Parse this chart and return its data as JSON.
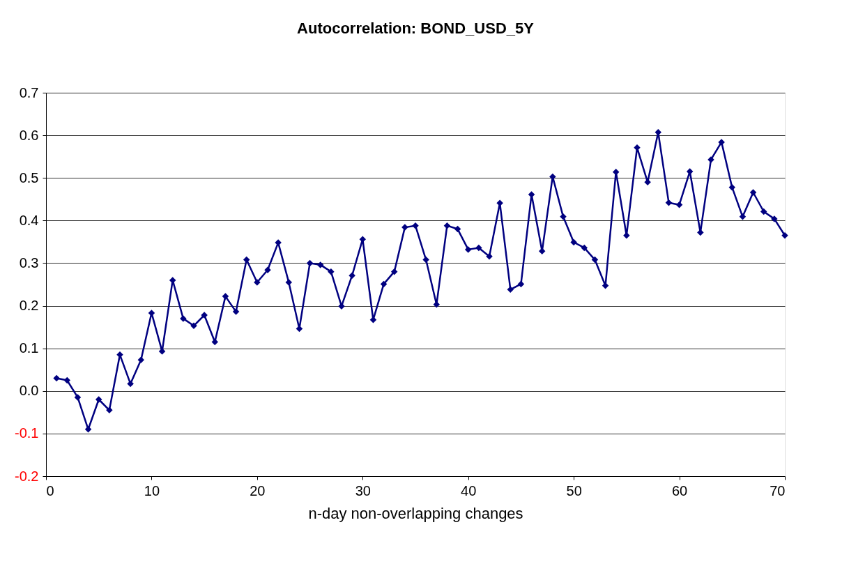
{
  "chart_data": {
    "type": "line",
    "title": "Autocorrelation: BOND_USD_5Y",
    "xlabel": "n-day non-overlapping changes",
    "x": [
      1,
      2,
      3,
      4,
      5,
      6,
      7,
      8,
      9,
      10,
      11,
      12,
      13,
      14,
      15,
      16,
      17,
      18,
      19,
      20,
      21,
      22,
      23,
      24,
      25,
      26,
      27,
      28,
      29,
      30,
      31,
      32,
      33,
      34,
      35,
      36,
      37,
      38,
      39,
      40,
      41,
      42,
      43,
      44,
      45,
      46,
      47,
      48,
      49,
      50,
      51,
      52,
      53,
      54,
      55,
      56,
      57,
      58,
      59,
      60,
      61,
      62,
      63,
      64,
      65,
      66,
      67,
      68,
      69,
      70
    ],
    "series": [
      {
        "color": "#000080",
        "values": [
          0.03,
          0.025,
          -0.015,
          -0.09,
          -0.02,
          -0.045,
          0.085,
          0.017,
          0.073,
          0.183,
          0.093,
          0.26,
          0.17,
          0.153,
          0.178,
          0.115,
          0.222,
          0.186,
          0.308,
          0.255,
          0.284,
          0.348,
          0.255,
          0.146,
          0.3,
          0.296,
          0.28,
          0.199,
          0.271,
          0.356,
          0.167,
          0.251,
          0.28,
          0.384,
          0.388,
          0.308,
          0.203,
          0.388,
          0.38,
          0.332,
          0.336,
          0.316,
          0.441,
          0.238,
          0.251,
          0.461,
          0.328,
          0.503,
          0.409,
          0.349,
          0.336,
          0.308,
          0.247,
          0.514,
          0.365,
          0.571,
          0.49,
          0.607,
          0.442,
          0.437,
          0.515,
          0.372,
          0.543,
          0.584,
          0.478,
          0.409,
          0.466,
          0.421,
          0.404,
          0.365
        ]
      }
    ],
    "xlim": [
      0,
      70
    ],
    "xticks": [
      0,
      10,
      20,
      30,
      40,
      50,
      60,
      70
    ],
    "ylim": [
      -0.2,
      0.7
    ],
    "yticks": [
      {
        "value": -0.2,
        "label": "-0.2"
      },
      {
        "value": -0.1,
        "label": "-0.1"
      },
      {
        "value": 0,
        "label": "0.0"
      },
      0.1,
      0.2,
      0.3,
      0.4,
      0.5,
      0.6,
      0.7
    ],
    "grid": "y",
    "marker": "diamond",
    "line_style": "solid"
  }
}
